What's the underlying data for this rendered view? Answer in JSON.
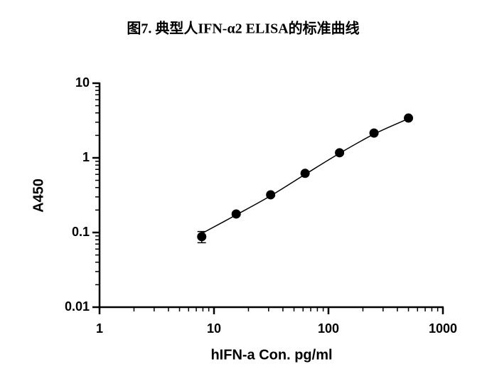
{
  "chart_data": {
    "type": "scatter",
    "title": "图7. 典型人IFN-α2 ELISA的标准曲线",
    "x_label": "hIFN-a Con. pg/ml",
    "y_label": "A450",
    "log_x": true,
    "log_y": true,
    "xlim": [
      1,
      1000
    ],
    "ylim": [
      0.01,
      10
    ],
    "xticks": [
      1,
      10,
      100,
      1000
    ],
    "yticks": [
      0.01,
      0.1,
      1,
      10
    ],
    "series": [
      {
        "color": "#000000",
        "x": [
          7.8125,
          15.625,
          31.25,
          62.5,
          125,
          250,
          500
        ],
        "values": [
          0.088,
          0.177,
          0.32,
          0.62,
          1.17,
          2.15,
          3.41
        ],
        "errors": [
          0.015,
          0.006,
          0.01,
          0.02,
          0.04,
          0.06,
          0.08
        ]
      }
    ],
    "fit": {
      "color": "#000000",
      "x": [
        7.8125,
        15.625,
        31.25,
        62.5,
        125,
        250,
        500
      ],
      "values": [
        0.097,
        0.172,
        0.31,
        0.6,
        1.15,
        2.08,
        3.35
      ]
    }
  }
}
